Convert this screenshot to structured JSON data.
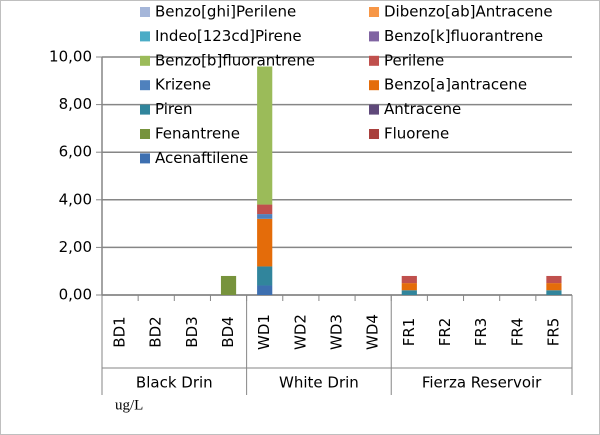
{
  "chart_data": {
    "type": "bar",
    "stacked": true,
    "categories": [
      "BD1",
      "BD2",
      "BD3",
      "BD4",
      "WD1",
      "WD2",
      "WD3",
      "WD4",
      "FR1",
      "FR2",
      "FR3",
      "FR4",
      "FR5"
    ],
    "group_labels": [
      "Black Drin",
      "White Drin",
      "Fierza Reservoir"
    ],
    "y_unit": "ug/L",
    "ylim": [
      0,
      10
    ],
    "yticks": [
      {
        "value": 0,
        "label": "0,00"
      },
      {
        "value": 2,
        "label": "2,00"
      },
      {
        "value": 4,
        "label": "4,00"
      },
      {
        "value": 6,
        "label": "6,00"
      },
      {
        "value": 8,
        "label": "8,00"
      },
      {
        "value": 10,
        "label": "10,00"
      }
    ],
    "grid": true,
    "series": [
      {
        "name": "Acenaftilene",
        "color": "#3d6fb0",
        "values": [
          0,
          0,
          0,
          0,
          0.4,
          0,
          0,
          0,
          0,
          0,
          0,
          0,
          0
        ]
      },
      {
        "name": "Fluorene",
        "color": "#a9403d",
        "values": [
          0,
          0,
          0,
          0,
          0,
          0,
          0,
          0,
          0,
          0,
          0,
          0,
          0
        ]
      },
      {
        "name": "Fenantrene",
        "color": "#77933c",
        "values": [
          0,
          0,
          0,
          0.8,
          0,
          0,
          0,
          0,
          0,
          0,
          0,
          0,
          0
        ]
      },
      {
        "name": "Antracene",
        "color": "#5f497a",
        "values": [
          0,
          0,
          0,
          0,
          0,
          0,
          0,
          0,
          0,
          0,
          0,
          0,
          0
        ]
      },
      {
        "name": "Piren",
        "color": "#31859c",
        "values": [
          0,
          0,
          0,
          0,
          0.8,
          0,
          0,
          0,
          0.2,
          0,
          0,
          0,
          0.2
        ]
      },
      {
        "name": "Benzo[a]antracene",
        "color": "#e46c0a",
        "values": [
          0,
          0,
          0,
          0,
          2,
          0,
          0,
          0,
          0.3,
          0,
          0,
          0,
          0.3
        ]
      },
      {
        "name": "Krizene",
        "color": "#4f81bd",
        "values": [
          0,
          0,
          0,
          0,
          0.2,
          0,
          0,
          0,
          0,
          0,
          0,
          0,
          0
        ]
      },
      {
        "name": "Perilene",
        "color": "#c0504d",
        "values": [
          0,
          0,
          0,
          0,
          0.4,
          0,
          0,
          0,
          0.3,
          0,
          0,
          0,
          0.3
        ]
      },
      {
        "name": "Benzo[b]fluorantrene",
        "color": "#9bbb59",
        "values": [
          0,
          0,
          0,
          0,
          5.8,
          0,
          0,
          0,
          0,
          0,
          0,
          0,
          0
        ]
      },
      {
        "name": "Benzo[k]fluorantrene",
        "color": "#8064a2",
        "values": [
          0,
          0,
          0,
          0,
          0,
          0,
          0,
          0,
          0,
          0,
          0,
          0,
          0
        ]
      },
      {
        "name": "Indeo[123cd]Pirene",
        "color": "#4bacc6",
        "values": [
          0,
          0,
          0,
          0,
          0,
          0,
          0,
          0,
          0,
          0,
          0,
          0,
          0
        ]
      },
      {
        "name": "Dibenzo[ab]Antracene",
        "color": "#f79646",
        "values": [
          0,
          0,
          0,
          0,
          0,
          0,
          0,
          0,
          0,
          0,
          0,
          0,
          0
        ]
      },
      {
        "name": "Benzo[ghi]Perilene",
        "color": "#a5b6d9",
        "values": [
          0,
          0,
          0,
          0,
          0,
          0,
          0,
          0,
          0,
          0,
          0,
          0,
          0
        ]
      }
    ]
  }
}
